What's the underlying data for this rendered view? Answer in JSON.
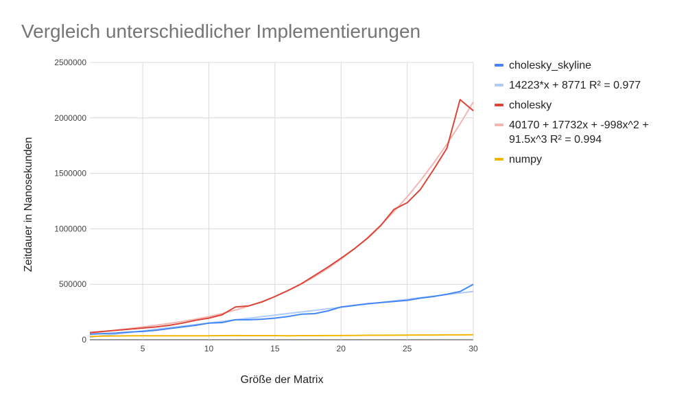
{
  "chart_data": {
    "type": "line",
    "title": "Vergleich unterschiedlicher Implementierungen",
    "xlabel": "Größe der Matrix",
    "ylabel": "Zeitdauer in Nanosekunden",
    "xlim": [
      1,
      30
    ],
    "ylim": [
      0,
      2500000
    ],
    "x_ticks": [
      5,
      10,
      15,
      20,
      25,
      30
    ],
    "y_ticks": [
      "0",
      "500000",
      "1000000",
      "1500000",
      "2000000",
      "2500000"
    ],
    "grid": true,
    "legend_position": "right",
    "x": [
      1,
      2,
      3,
      4,
      5,
      6,
      7,
      8,
      9,
      10,
      11,
      12,
      13,
      14,
      15,
      16,
      17,
      18,
      19,
      20,
      21,
      22,
      23,
      24,
      25,
      26,
      27,
      28,
      29,
      30
    ],
    "series": [
      {
        "name": "cholesky_skyline",
        "color": "#4285f4",
        "kind": "data",
        "values": [
          50000,
          55000,
          60000,
          70000,
          75000,
          85000,
          100000,
          115000,
          130000,
          150000,
          155000,
          180000,
          180000,
          185000,
          195000,
          210000,
          230000,
          235000,
          260000,
          295000,
          310000,
          325000,
          335000,
          345000,
          355000,
          375000,
          390000,
          410000,
          435000,
          500000
        ]
      },
      {
        "name": "14223*x + 8771 R² = 0.977",
        "color": "#aecbfa",
        "kind": "trend",
        "values": [
          22994,
          37217,
          51440,
          65663,
          79886,
          94109,
          108332,
          122555,
          136778,
          151001,
          165224,
          179447,
          193670,
          207893,
          222116,
          236339,
          250562,
          264785,
          279008,
          293231,
          307454,
          321677,
          335900,
          350123,
          364346,
          378569,
          392792,
          407015,
          421238,
          435461
        ]
      },
      {
        "name": "cholesky",
        "color": "#db4437",
        "kind": "data",
        "values": [
          65000,
          75000,
          85000,
          95000,
          105000,
          115000,
          130000,
          150000,
          175000,
          195000,
          225000,
          295000,
          305000,
          340000,
          390000,
          445000,
          505000,
          580000,
          655000,
          735000,
          820000,
          915000,
          1030000,
          1175000,
          1235000,
          1355000,
          1535000,
          1725000,
          2165000,
          2065000
        ]
      },
      {
        "name": "40170 + 17732x + -998x^2 + 91.5x^3 R² = 0.994",
        "color": "#f4b5b0",
        "kind": "trend",
        "values": [
          56996,
          72371,
          86844,
          100965,
          115283,
          130347,
          146706,
          164910,
          185508,
          209050,
          236084,
          267161,
          302829,
          343638,
          390137,
          442876,
          502403,
          569269,
          644022,
          727212,
          819388,
          921099,
          1032896,
          1155326,
          1288940,
          1434286,
          1591915,
          1762375,
          1946216,
          2143987
        ]
      },
      {
        "name": "numpy",
        "color": "#f4b400",
        "kind": "data",
        "values": [
          30000,
          33000,
          34000,
          35000,
          35000,
          35000,
          35000,
          36000,
          36000,
          36000,
          37000,
          38000,
          37000,
          37000,
          37000,
          36000,
          37000,
          37000,
          38000,
          38000,
          39000,
          40000,
          40000,
          41000,
          42000,
          43000,
          43000,
          44000,
          44000,
          45000
        ]
      }
    ]
  }
}
